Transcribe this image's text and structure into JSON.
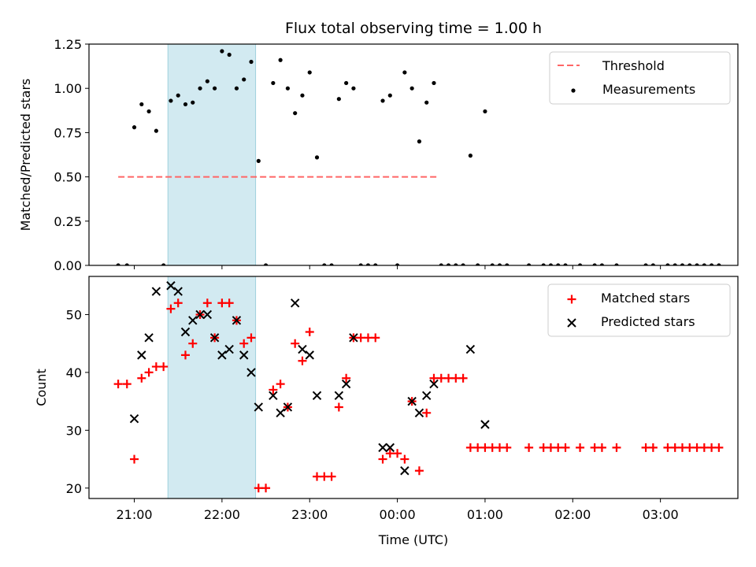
{
  "title": "Flux total observing time = 1.00 h",
  "chart_data": [
    {
      "type": "scatter",
      "ylabel": "Matched/Predicted stars",
      "ylim": [
        0,
        1.25
      ],
      "yticks": [
        "0.00",
        "0.25",
        "0.50",
        "0.75",
        "1.00",
        "1.25"
      ],
      "highlight_span": [
        "21:23",
        "22:23"
      ],
      "highlight_color": "#add8e6",
      "threshold": {
        "name": "Threshold",
        "value": 0.5,
        "x_range": [
          "20:49",
          "24:28"
        ],
        "color": "#ff6666"
      },
      "series": [
        {
          "name": "Measurements",
          "color": "#000000",
          "points": [
            [
              "20:49",
              0
            ],
            [
              "20:55",
              0
            ],
            [
              "21:00",
              0.78
            ],
            [
              "21:05",
              0.91
            ],
            [
              "21:10",
              0.87
            ],
            [
              "21:15",
              0.76
            ],
            [
              "21:20",
              0
            ],
            [
              "21:25",
              0.93
            ],
            [
              "21:30",
              0.96
            ],
            [
              "21:35",
              0.91
            ],
            [
              "21:40",
              0.92
            ],
            [
              "21:45",
              1.0
            ],
            [
              "21:50",
              1.04
            ],
            [
              "21:55",
              1.0
            ],
            [
              "22:00",
              1.21
            ],
            [
              "22:05",
              1.19
            ],
            [
              "22:10",
              1.0
            ],
            [
              "22:15",
              1.05
            ],
            [
              "22:20",
              1.15
            ],
            [
              "22:25",
              0.59
            ],
            [
              "22:30",
              0
            ],
            [
              "22:35",
              1.03
            ],
            [
              "22:40",
              1.16
            ],
            [
              "22:45",
              1.0
            ],
            [
              "22:50",
              0.86
            ],
            [
              "22:55",
              0.96
            ],
            [
              "23:00",
              1.09
            ],
            [
              "23:05",
              0.61
            ],
            [
              "23:10",
              0
            ],
            [
              "23:15",
              0
            ],
            [
              "23:20",
              0.94
            ],
            [
              "23:25",
              1.03
            ],
            [
              "23:30",
              1.0
            ],
            [
              "23:35",
              0
            ],
            [
              "23:40",
              0
            ],
            [
              "23:45",
              0
            ],
            [
              "23:50",
              0.93
            ],
            [
              "23:55",
              0.96
            ],
            [
              "24:00",
              0
            ],
            [
              "24:05",
              1.09
            ],
            [
              "24:10",
              1.0
            ],
            [
              "24:15",
              0.7
            ],
            [
              "24:20",
              0.92
            ],
            [
              "24:25",
              1.03
            ],
            [
              "24:30",
              0
            ],
            [
              "24:35",
              0
            ],
            [
              "24:40",
              0
            ],
            [
              "24:45",
              0
            ],
            [
              "24:50",
              0.62
            ],
            [
              "24:55",
              0
            ],
            [
              "25:00",
              0.87
            ],
            [
              "25:05",
              0
            ],
            [
              "25:10",
              0
            ],
            [
              "25:15",
              0
            ],
            [
              "25:30",
              0
            ],
            [
              "25:40",
              0
            ],
            [
              "25:45",
              0
            ],
            [
              "25:50",
              0
            ],
            [
              "25:55",
              0
            ],
            [
              "26:05",
              0
            ],
            [
              "26:15",
              0
            ],
            [
              "26:20",
              0
            ],
            [
              "26:30",
              0
            ],
            [
              "26:50",
              0
            ],
            [
              "26:55",
              0
            ],
            [
              "27:05",
              0
            ],
            [
              "27:10",
              0
            ],
            [
              "27:15",
              0
            ],
            [
              "27:20",
              0
            ],
            [
              "27:25",
              0
            ],
            [
              "27:30",
              0
            ],
            [
              "27:35",
              0
            ],
            [
              "27:40",
              0
            ]
          ]
        }
      ]
    },
    {
      "type": "scatter",
      "xlabel": "Time (UTC)",
      "ylabel": "Count",
      "ylim": [
        18.2,
        56.6
      ],
      "yticks": [
        "20",
        "30",
        "40",
        "50"
      ],
      "highlight_span": [
        "21:23",
        "22:23"
      ],
      "highlight_color": "#add8e6",
      "series": [
        {
          "name": "Matched stars",
          "color": "#ff0000",
          "points": [
            [
              "20:49",
              38
            ],
            [
              "20:55",
              38
            ],
            [
              "21:00",
              25
            ],
            [
              "21:05",
              39
            ],
            [
              "21:10",
              40
            ],
            [
              "21:15",
              41
            ],
            [
              "21:20",
              41
            ],
            [
              "21:25",
              51
            ],
            [
              "21:30",
              52
            ],
            [
              "21:35",
              43
            ],
            [
              "21:40",
              45
            ],
            [
              "21:45",
              50
            ],
            [
              "21:50",
              52
            ],
            [
              "21:55",
              46
            ],
            [
              "22:00",
              52
            ],
            [
              "22:05",
              52
            ],
            [
              "22:10",
              49
            ],
            [
              "22:15",
              45
            ],
            [
              "22:20",
              46
            ],
            [
              "22:25",
              20
            ],
            [
              "22:30",
              20
            ],
            [
              "22:35",
              37
            ],
            [
              "22:40",
              38
            ],
            [
              "22:45",
              34
            ],
            [
              "22:50",
              45
            ],
            [
              "22:55",
              42
            ],
            [
              "23:00",
              47
            ],
            [
              "23:05",
              22
            ],
            [
              "23:10",
              22
            ],
            [
              "23:15",
              22
            ],
            [
              "23:20",
              34
            ],
            [
              "23:25",
              39
            ],
            [
              "23:30",
              46
            ],
            [
              "23:35",
              46
            ],
            [
              "23:40",
              46
            ],
            [
              "23:45",
              46
            ],
            [
              "23:50",
              25
            ],
            [
              "23:55",
              26
            ],
            [
              "24:00",
              26
            ],
            [
              "24:05",
              25
            ],
            [
              "24:10",
              35
            ],
            [
              "24:15",
              23
            ],
            [
              "24:20",
              33
            ],
            [
              "24:25",
              39
            ],
            [
              "24:30",
              39
            ],
            [
              "24:35",
              39
            ],
            [
              "24:40",
              39
            ],
            [
              "24:45",
              39
            ],
            [
              "24:50",
              27
            ],
            [
              "24:55",
              27
            ],
            [
              "25:00",
              27
            ],
            [
              "25:05",
              27
            ],
            [
              "25:10",
              27
            ],
            [
              "25:15",
              27
            ],
            [
              "25:30",
              27
            ],
            [
              "25:40",
              27
            ],
            [
              "25:45",
              27
            ],
            [
              "25:50",
              27
            ],
            [
              "25:55",
              27
            ],
            [
              "26:05",
              27
            ],
            [
              "26:15",
              27
            ],
            [
              "26:20",
              27
            ],
            [
              "26:30",
              27
            ],
            [
              "26:50",
              27
            ],
            [
              "26:55",
              27
            ],
            [
              "27:05",
              27
            ],
            [
              "27:10",
              27
            ],
            [
              "27:15",
              27
            ],
            [
              "27:20",
              27
            ],
            [
              "27:25",
              27
            ],
            [
              "27:30",
              27
            ],
            [
              "27:35",
              27
            ],
            [
              "27:40",
              27
            ]
          ]
        },
        {
          "name": "Predicted stars",
          "color": "#000000",
          "points": [
            [
              "21:00",
              32
            ],
            [
              "21:05",
              43
            ],
            [
              "21:10",
              46
            ],
            [
              "21:15",
              54
            ],
            [
              "21:25",
              55
            ],
            [
              "21:30",
              54
            ],
            [
              "21:35",
              47
            ],
            [
              "21:40",
              49
            ],
            [
              "21:45",
              50
            ],
            [
              "21:50",
              50
            ],
            [
              "21:55",
              46
            ],
            [
              "22:00",
              43
            ],
            [
              "22:05",
              44
            ],
            [
              "22:10",
              49
            ],
            [
              "22:15",
              43
            ],
            [
              "22:20",
              40
            ],
            [
              "22:25",
              34
            ],
            [
              "22:35",
              36
            ],
            [
              "22:40",
              33
            ],
            [
              "22:45",
              34
            ],
            [
              "22:50",
              52
            ],
            [
              "22:55",
              44
            ],
            [
              "23:00",
              43
            ],
            [
              "23:05",
              36
            ],
            [
              "23:20",
              36
            ],
            [
              "23:25",
              38
            ],
            [
              "23:30",
              46
            ],
            [
              "23:50",
              27
            ],
            [
              "23:55",
              27
            ],
            [
              "24:05",
              23
            ],
            [
              "24:10",
              35
            ],
            [
              "24:15",
              33
            ],
            [
              "24:20",
              36
            ],
            [
              "24:25",
              38
            ],
            [
              "24:50",
              44
            ],
            [
              "25:00",
              31
            ]
          ]
        }
      ]
    }
  ],
  "x_axis": {
    "xlim": [
      "20:29",
      "27:53"
    ],
    "ticks": [
      "21:00",
      "22:00",
      "23:00",
      "00:00",
      "01:00",
      "02:00",
      "03:00"
    ]
  }
}
